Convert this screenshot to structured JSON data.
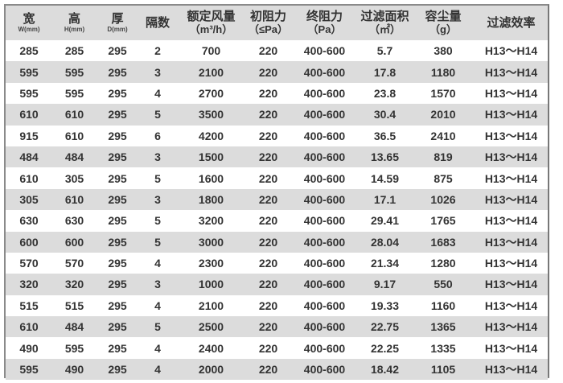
{
  "header": [
    {
      "main": "宽",
      "sub": "W(mm)"
    },
    {
      "main": "高",
      "sub": "H(mm)"
    },
    {
      "main": "厚",
      "sub": "D(mm)"
    },
    {
      "main": "隔数",
      "unit": ""
    },
    {
      "main": "额定风量",
      "unit": "（m³/h）"
    },
    {
      "main": "初阻力",
      "unit": "（≤Pa）"
    },
    {
      "main": "终阻力",
      "unit": "（Pa）"
    },
    {
      "main": "过滤面积",
      "unit": "（㎡）"
    },
    {
      "main": "容尘量",
      "unit": "（g）"
    },
    {
      "main": "过滤效率",
      "unit": ""
    }
  ],
  "rows": [
    [
      "285",
      "285",
      "295",
      "2",
      "700",
      "220",
      "400-600",
      "5.7",
      "380",
      "H13～H14"
    ],
    [
      "595",
      "595",
      "295",
      "3",
      "2100",
      "220",
      "400-600",
      "17.8",
      "1180",
      "H13～H14"
    ],
    [
      "595",
      "595",
      "295",
      "4",
      "2700",
      "220",
      "400-600",
      "23.8",
      "1570",
      "H13～H14"
    ],
    [
      "610",
      "610",
      "295",
      "5",
      "3500",
      "220",
      "400-600",
      "30.4",
      "2010",
      "H13～H14"
    ],
    [
      "915",
      "610",
      "295",
      "6",
      "4200",
      "220",
      "400-600",
      "36.5",
      "2410",
      "H13～H14"
    ],
    [
      "484",
      "484",
      "295",
      "3",
      "1500",
      "220",
      "400-600",
      "13.65",
      "819",
      "H13～H14"
    ],
    [
      "610",
      "305",
      "295",
      "5",
      "1600",
      "220",
      "400-600",
      "14.59",
      "875",
      "H13～H14"
    ],
    [
      "305",
      "610",
      "295",
      "3",
      "1800",
      "220",
      "400-600",
      "17.1",
      "1026",
      "H13～H14"
    ],
    [
      "630",
      "630",
      "295",
      "5",
      "3200",
      "220",
      "400-600",
      "29.41",
      "1765",
      "H13～H14"
    ],
    [
      "600",
      "600",
      "295",
      "5",
      "3000",
      "220",
      "400-600",
      "28.04",
      "1683",
      "H13～H14"
    ],
    [
      "570",
      "570",
      "295",
      "4",
      "2300",
      "220",
      "400-600",
      "21.34",
      "1280",
      "H13～H14"
    ],
    [
      "320",
      "320",
      "295",
      "3",
      "1000",
      "220",
      "400-600",
      "9.17",
      "550",
      "H13～H14"
    ],
    [
      "515",
      "515",
      "295",
      "4",
      "2100",
      "220",
      "400-600",
      "19.33",
      "1160",
      "H13～H14"
    ],
    [
      "610",
      "484",
      "295",
      "5",
      "2500",
      "220",
      "400-600",
      "22.75",
      "1365",
      "H13～H14"
    ],
    [
      "490",
      "595",
      "295",
      "4",
      "2400",
      "220",
      "400-600",
      "22.25",
      "1335",
      "H13～H14"
    ],
    [
      "595",
      "490",
      "295",
      "4",
      "2000",
      "220",
      "400-600",
      "18.42",
      "1105",
      "H13～H14"
    ]
  ]
}
